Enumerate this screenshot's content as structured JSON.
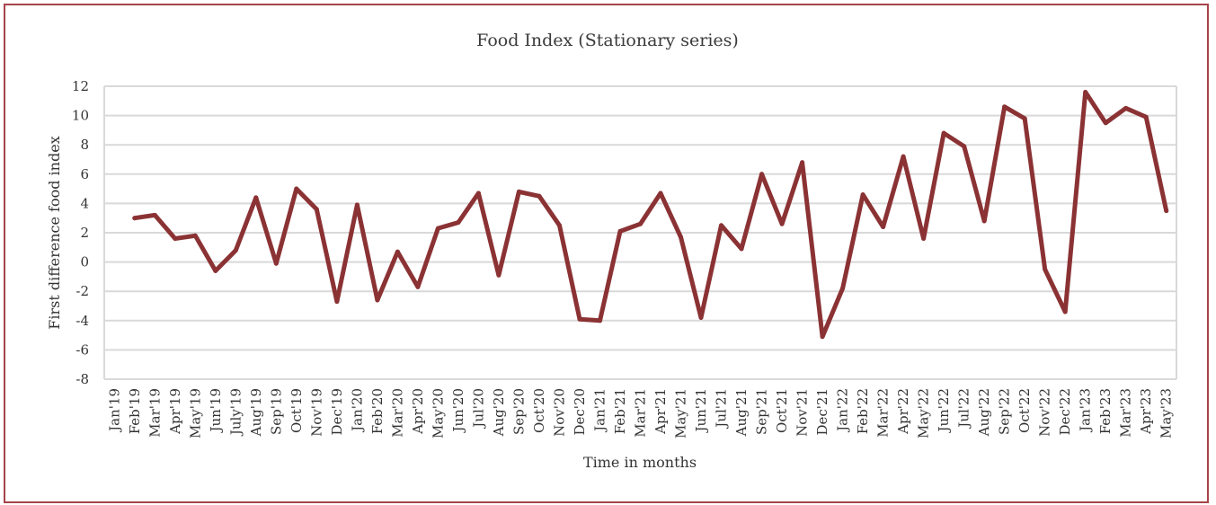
{
  "chart_data": {
    "type": "line",
    "title": "Food Index (Stationary series)",
    "xlabel": "Time in months",
    "ylabel": "First difference food index",
    "ylim": [
      -8,
      12
    ],
    "y_ticks": [
      12,
      10,
      8,
      6,
      4,
      2,
      0,
      -2,
      -4,
      -6,
      -8
    ],
    "grid": true,
    "legend": "none",
    "categories": [
      "Jan'19",
      "Feb'19",
      "Mar'19",
      "Apr'19",
      "May'19",
      "Jun'19",
      "July'19",
      "Aug'19",
      "Sep'19",
      "Oct'19",
      "Nov'19",
      "Dec'19",
      "Jan'20",
      "Feb'20",
      "Mar'20",
      "Apr'20",
      "May'20",
      "Jun'20",
      "Jul'20",
      "Aug'20",
      "Sep'20",
      "Oct'20",
      "Nov'20",
      "Dec'20",
      "Jan'21",
      "Feb'21",
      "Mar'21",
      "Apr'21",
      "May'21",
      "Jun'21",
      "Jul'21",
      "Aug'21",
      "Sep'21",
      "Oct'21",
      "Nov'21",
      "Dec'21",
      "Jan'22",
      "Feb'22",
      "Mar'22",
      "Apr'22",
      "May'22",
      "Jun'22",
      "Jul'22",
      "Aug'22",
      "Sep'22",
      "Oct'22",
      "Nov'22",
      "Dec'22",
      "Jan'23",
      "Feb'23",
      "Mar'23",
      "Apr'23",
      "May'23"
    ],
    "series": [
      {
        "values": [
          null,
          3.0,
          3.2,
          1.6,
          1.8,
          -0.6,
          0.8,
          4.4,
          -0.1,
          5.0,
          3.6,
          -2.7,
          3.9,
          -2.6,
          0.7,
          -1.7,
          2.3,
          2.7,
          4.7,
          -0.9,
          4.8,
          4.5,
          2.5,
          -3.9,
          -4.0,
          2.1,
          2.6,
          4.7,
          1.7,
          -3.8,
          2.5,
          0.9,
          6.0,
          2.6,
          6.8,
          -5.1,
          -1.8,
          4.6,
          2.4,
          7.2,
          1.6,
          8.8,
          7.9,
          2.8,
          10.6,
          9.8,
          -0.5,
          -3.4,
          11.6,
          9.5,
          10.5,
          9.9,
          3.5
        ],
        "color": "#8b3234"
      }
    ],
    "colors": {
      "frame": "#a8434a",
      "line": "#8b3234",
      "grid": "#d9d9d9"
    }
  }
}
